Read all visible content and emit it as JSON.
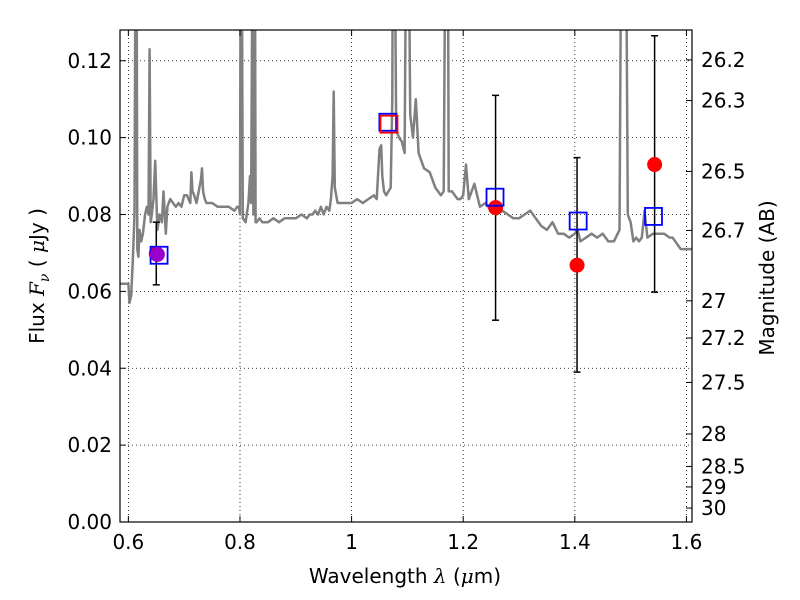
{
  "chart_data": {
    "type": "scatter",
    "xlabel_prefix": "Wavelength",
    "xlabel_symbol": "λ",
    "xlabel_unit_open": "(",
    "xlabel_unit_mu": "μ",
    "xlabel_unit_rest": "m)",
    "ylabel_prefix": "Flux",
    "ylabel_symbol": "F",
    "ylabel_subscript": "ν",
    "ylabel_unit_open": "(",
    "ylabel_unit_mu": "μ",
    "ylabel_unit_rest": "Jy )",
    "y2label": "Magnitude (AB)",
    "xlim": [
      0.585,
      1.61
    ],
    "ylim": [
      0.0,
      0.128
    ],
    "grid": true,
    "x_ticks": [
      {
        "value": 0.6,
        "label": "0.6"
      },
      {
        "value": 0.8,
        "label": "0.8"
      },
      {
        "value": 1.0,
        "label": "1"
      },
      {
        "value": 1.2,
        "label": "1.2"
      },
      {
        "value": 1.4,
        "label": "1.4"
      },
      {
        "value": 1.6,
        "label": "1.6"
      }
    ],
    "y_ticks": [
      {
        "value": 0.0,
        "label": "0.00"
      },
      {
        "value": 0.02,
        "label": "0.02"
      },
      {
        "value": 0.04,
        "label": "0.04"
      },
      {
        "value": 0.06,
        "label": "0.06"
      },
      {
        "value": 0.08,
        "label": "0.08"
      },
      {
        "value": 0.1,
        "label": "0.10"
      },
      {
        "value": 0.12,
        "label": "0.12"
      }
    ],
    "y2_ticks": [
      {
        "value": 26.2,
        "label": "26.2"
      },
      {
        "value": 26.3,
        "label": "26.3"
      },
      {
        "value": 26.5,
        "label": "26.5"
      },
      {
        "value": 26.7,
        "label": "26.7"
      },
      {
        "value": 27.0,
        "label": "27"
      },
      {
        "value": 27.2,
        "label": "27.2"
      },
      {
        "value": 27.5,
        "label": "27.5"
      },
      {
        "value": 28.0,
        "label": "28"
      },
      {
        "value": 28.5,
        "label": "28.5"
      },
      {
        "value": 29.0,
        "label": "29"
      },
      {
        "value": 30.0,
        "label": "30"
      }
    ],
    "series": [
      {
        "kind": "line",
        "color": "#808080",
        "x": [
          0.585,
          0.595,
          0.6,
          0.602,
          0.605,
          0.608,
          0.611,
          0.614,
          0.616,
          0.618,
          0.62,
          0.623,
          0.626,
          0.63,
          0.633,
          0.636,
          0.638,
          0.64,
          0.642,
          0.645,
          0.648,
          0.652,
          0.656,
          0.66,
          0.663,
          0.667,
          0.67,
          0.675,
          0.68,
          0.685,
          0.69,
          0.695,
          0.7,
          0.705,
          0.708,
          0.711,
          0.713,
          0.715,
          0.718,
          0.722,
          0.726,
          0.73,
          0.732,
          0.734,
          0.737,
          0.74,
          0.75,
          0.76,
          0.77,
          0.78,
          0.79,
          0.795,
          0.798,
          0.8,
          0.802,
          0.805,
          0.81,
          0.815,
          0.818,
          0.82,
          0.822,
          0.824,
          0.826,
          0.828,
          0.83,
          0.835,
          0.84,
          0.85,
          0.86,
          0.87,
          0.88,
          0.89,
          0.9,
          0.91,
          0.92,
          0.925,
          0.93,
          0.935,
          0.94,
          0.945,
          0.95,
          0.955,
          0.96,
          0.963,
          0.966,
          0.968,
          0.97,
          0.975,
          0.98,
          0.99,
          1.0,
          1.01,
          1.02,
          1.03,
          1.04,
          1.045,
          1.05,
          1.053,
          1.055,
          1.058,
          1.062,
          1.066,
          1.07,
          1.073,
          1.075,
          1.08,
          1.085,
          1.09,
          1.095,
          1.1,
          1.105,
          1.11,
          1.115,
          1.12,
          1.125,
          1.13,
          1.14,
          1.15,
          1.16,
          1.165,
          1.17,
          1.172,
          1.174,
          1.176,
          1.18,
          1.185,
          1.19,
          1.195,
          1.2,
          1.205,
          1.21,
          1.22,
          1.23,
          1.24,
          1.25,
          1.26,
          1.27,
          1.28,
          1.29,
          1.3,
          1.31,
          1.32,
          1.33,
          1.34,
          1.35,
          1.36,
          1.37,
          1.38,
          1.39,
          1.4,
          1.405,
          1.41,
          1.42,
          1.43,
          1.44,
          1.45,
          1.46,
          1.47,
          1.48,
          1.485,
          1.49,
          1.495,
          1.5,
          1.505,
          1.51,
          1.515,
          1.52,
          1.525,
          1.53,
          1.54,
          1.55,
          1.56,
          1.57,
          1.575,
          1.58,
          1.585,
          1.59,
          1.6,
          1.61
        ],
        "y": [
          0.062,
          0.062,
          0.062,
          0.057,
          0.059,
          0.068,
          0.08,
          0.2,
          0.071,
          0.069,
          0.076,
          0.073,
          0.075,
          0.08,
          0.082,
          0.08,
          0.123,
          0.078,
          0.08,
          0.084,
          0.094,
          0.076,
          0.08,
          0.078,
          0.086,
          0.075,
          0.082,
          0.084,
          0.083,
          0.082,
          0.083,
          0.082,
          0.085,
          0.085,
          0.084,
          0.083,
          0.091,
          0.086,
          0.085,
          0.083,
          0.086,
          0.089,
          0.092,
          0.086,
          0.084,
          0.083,
          0.083,
          0.082,
          0.082,
          0.082,
          0.081,
          0.082,
          0.082,
          0.08,
          0.2,
          0.079,
          0.078,
          0.083,
          0.09,
          0.083,
          0.14,
          0.08,
          0.2,
          0.078,
          0.078,
          0.079,
          0.078,
          0.078,
          0.079,
          0.078,
          0.079,
          0.079,
          0.079,
          0.08,
          0.079,
          0.08,
          0.08,
          0.081,
          0.08,
          0.082,
          0.08,
          0.082,
          0.081,
          0.084,
          0.09,
          0.112,
          0.087,
          0.083,
          0.083,
          0.083,
          0.083,
          0.084,
          0.083,
          0.084,
          0.085,
          0.084,
          0.097,
          0.098,
          0.09,
          0.086,
          0.085,
          0.086,
          0.087,
          0.11,
          0.2,
          0.102,
          0.1,
          0.099,
          0.096,
          0.2,
          0.106,
          0.1,
          0.11,
          0.096,
          0.094,
          0.092,
          0.091,
          0.087,
          0.085,
          0.086,
          0.2,
          0.18,
          0.086,
          0.086,
          0.086,
          0.085,
          0.084,
          0.084,
          0.085,
          0.093,
          0.084,
          0.088,
          0.082,
          0.083,
          0.081,
          0.08,
          0.081,
          0.08,
          0.079,
          0.079,
          0.08,
          0.081,
          0.079,
          0.077,
          0.076,
          0.078,
          0.075,
          0.075,
          0.074,
          0.075,
          0.076,
          0.073,
          0.074,
          0.075,
          0.074,
          0.075,
          0.073,
          0.073,
          0.076,
          0.2,
          0.2,
          0.08,
          0.078,
          0.073,
          0.074,
          0.073,
          0.074,
          0.081,
          0.074,
          0.075,
          0.075,
          0.075,
          0.074,
          0.074,
          0.073,
          0.072,
          0.071,
          0.071,
          0.071
        ]
      },
      {
        "kind": "errorbar",
        "color": "#000000",
        "points": [
          {
            "x": 0.65,
            "y": 0.0698,
            "low": 0.0617,
            "high": 0.078
          },
          {
            "x": 1.258,
            "y": 0.0818,
            "low": 0.0525,
            "high": 0.111
          },
          {
            "x": 1.404,
            "y": 0.0668,
            "low": 0.039,
            "high": 0.0948
          },
          {
            "x": 1.543,
            "y": 0.093,
            "low": 0.0598,
            "high": 0.1265
          }
        ]
      },
      {
        "kind": "marker-circle",
        "color": "#ff0000",
        "points": [
          {
            "x": 0.65,
            "y": 0.0698
          },
          {
            "x": 1.258,
            "y": 0.0818
          },
          {
            "x": 1.404,
            "y": 0.0668
          },
          {
            "x": 1.543,
            "y": 0.093
          }
        ]
      },
      {
        "kind": "marker-square",
        "edge_color": "#0000ff",
        "points": [
          {
            "x": 0.655,
            "y": 0.0694
          },
          {
            "x": 1.065,
            "y": 0.104
          },
          {
            "x": 1.257,
            "y": 0.0845
          },
          {
            "x": 1.406,
            "y": 0.0783
          },
          {
            "x": 1.541,
            "y": 0.0795
          }
        ]
      },
      {
        "kind": "marker-square",
        "edge_color": "#ff0000",
        "points": [
          {
            "x": 1.067,
            "y": 0.1035
          }
        ]
      },
      {
        "kind": "marker-circle",
        "color": "#9900cc",
        "points": [
          {
            "x": 0.652,
            "y": 0.0696
          }
        ]
      }
    ]
  }
}
